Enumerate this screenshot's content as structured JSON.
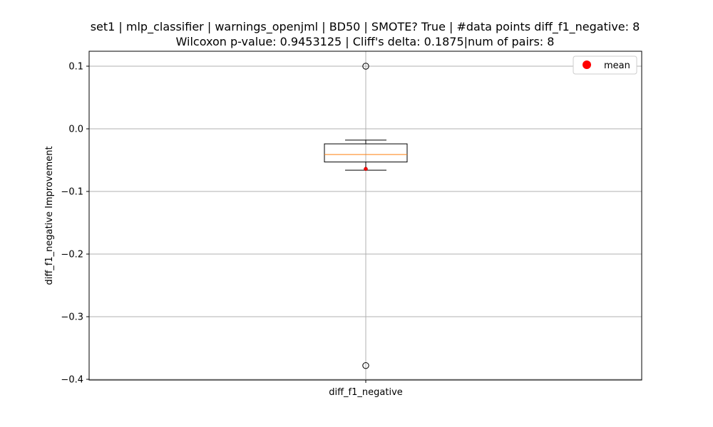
{
  "chart_data": {
    "type": "box",
    "title_line1": "set1 | mlp_classifier | warnings_openjml | BD50 | SMOTE? True | #data points diff_f1_negative: 8",
    "title_line2": "Wilcoxon p-value: 0.9453125 | Cliff's delta: 0.1875|num of pairs: 8",
    "xlabel": "",
    "ylabel": "diff_f1_negative Improvement",
    "categories": [
      "diff_f1_negative"
    ],
    "ylim": [
      -0.4,
      0.125
    ],
    "yticks": [
      0.1,
      0.0,
      -0.1,
      -0.2,
      -0.3,
      -0.4
    ],
    "ytick_labels": [
      "0.1",
      "0.0",
      "−0.1",
      "−0.2",
      "−0.3",
      "−0.4"
    ],
    "grid": true,
    "legend": {
      "position": "top-right",
      "entries": [
        {
          "label": "mean",
          "color": "#ff0000"
        }
      ]
    },
    "box": {
      "whisker_high": -0.018,
      "q3": -0.024,
      "median": -0.041,
      "q1": -0.053,
      "whisker_low": -0.066,
      "mean": -0.064,
      "outliers": [
        0.1,
        -0.378
      ]
    },
    "colors": {
      "median": "#ff7f0e",
      "mean": "#ff0000",
      "grid": "#b0b0b0"
    }
  }
}
